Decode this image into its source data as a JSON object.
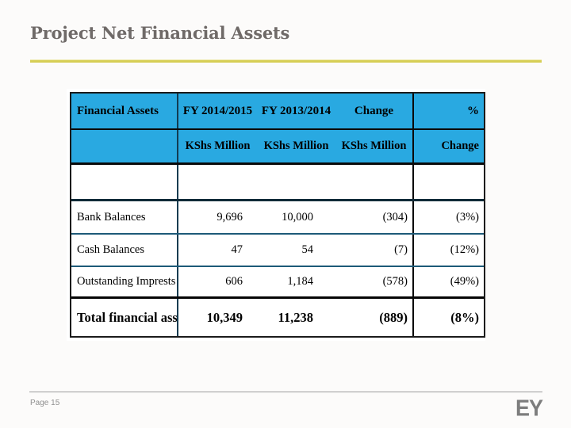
{
  "slide": {
    "title": "Project Net Financial Assets"
  },
  "table": {
    "columns": [
      "Financial Assets",
      "FY 2014/2015",
      "FY 2013/2014",
      "Change",
      "%"
    ],
    "units_row": [
      "",
      "KShs Million",
      "KShs Million",
      "KShs Million",
      "Change"
    ],
    "rows": [
      [
        "Bank Balances",
        "9,696",
        "10,000",
        "(304)",
        "(3%)"
      ],
      [
        "Cash Balances",
        "47",
        "54",
        "(7)",
        "(12%)"
      ],
      [
        "Outstanding Imprests",
        "606",
        "1,184",
        "(578)",
        "(49%)"
      ]
    ],
    "total_row": [
      "Total financial assets",
      "10,349",
      "11,238",
      "(889)",
      "(8%)"
    ]
  },
  "footer": {
    "page_label": "Page 15",
    "logo_text": "EY"
  },
  "colors": {
    "header_fill": "#29a9e1",
    "accent_rule": "#d6ce55",
    "title_text": "#6f6a68"
  },
  "chart_data": {
    "type": "table",
    "title": "Project Net Financial Assets",
    "columns": [
      "Financial Assets",
      "FY 2014/2015 KShs Million",
      "FY 2013/2014 KShs Million",
      "Change KShs Million",
      "% Change"
    ],
    "rows": [
      {
        "financial_asset": "Bank Balances",
        "fy_2014_2015": 9696,
        "fy_2013_2014": 10000,
        "change": -304,
        "pct_change": "-3%"
      },
      {
        "financial_asset": "Cash Balances",
        "fy_2014_2015": 47,
        "fy_2013_2014": 54,
        "change": -7,
        "pct_change": "-12%"
      },
      {
        "financial_asset": "Outstanding Imprests",
        "fy_2014_2015": 606,
        "fy_2013_2014": 1184,
        "change": -578,
        "pct_change": "-49%"
      },
      {
        "financial_asset": "Total financial assets",
        "fy_2014_2015": 10349,
        "fy_2013_2014": 11238,
        "change": -889,
        "pct_change": "-8%"
      }
    ]
  }
}
